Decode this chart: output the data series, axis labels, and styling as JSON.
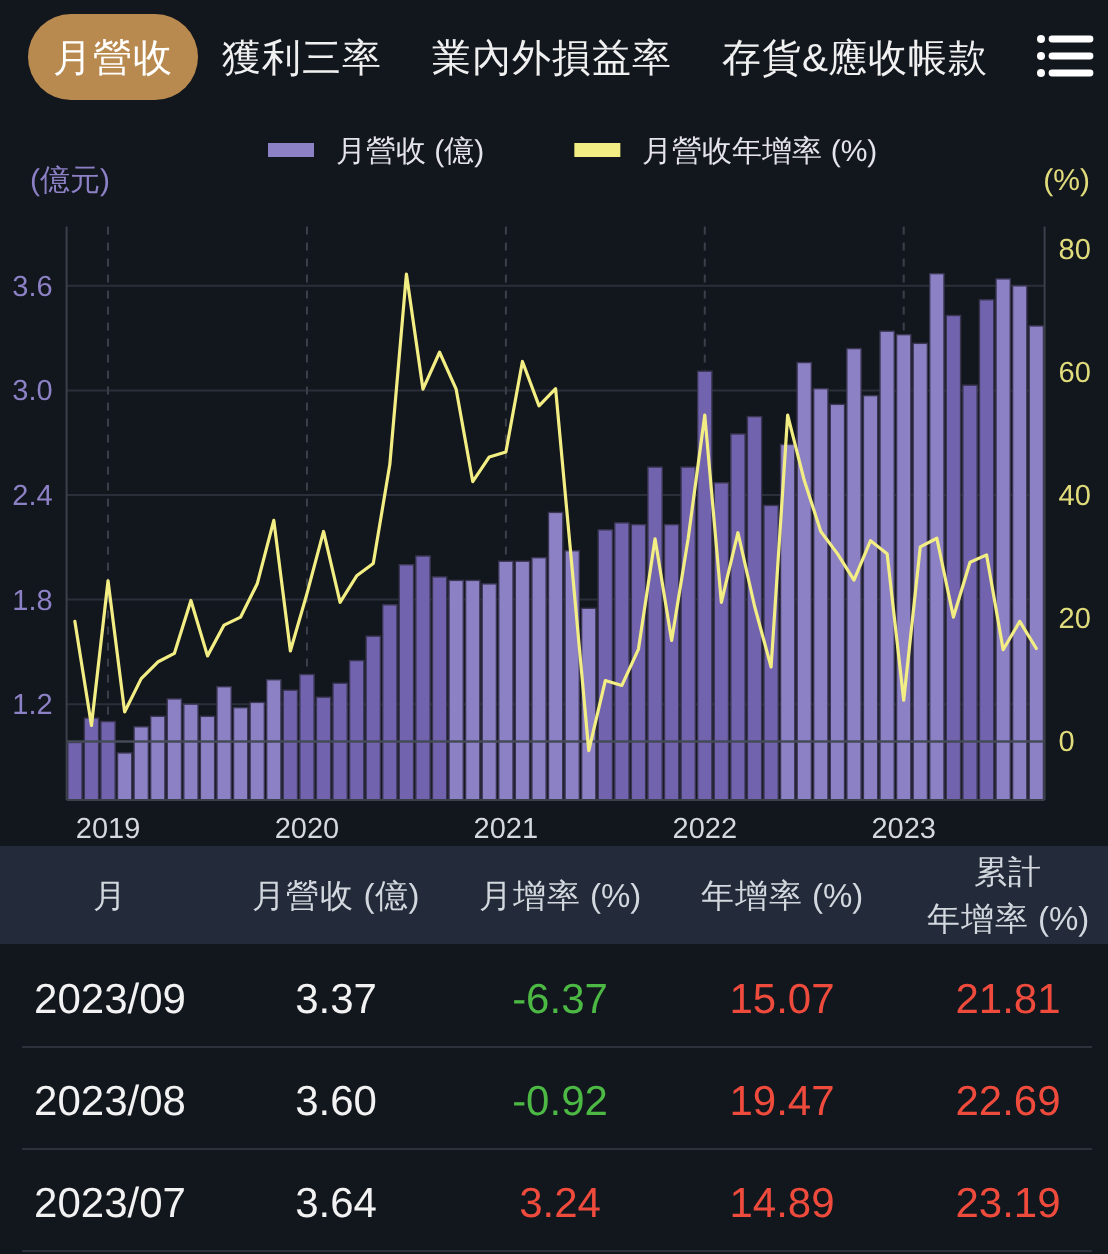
{
  "chart_data": [
    {
      "type": "bar",
      "title": "月營收",
      "annotations": [
        "獲利三率",
        "業內外損益率",
        "存貨&應收帳款"
      ],
      "ylabel": "(億元)",
      "y2label": "(%)",
      "categories": [
        null,
        null,
        "2019",
        null,
        null,
        null,
        null,
        null,
        null,
        null,
        null,
        null,
        null,
        null,
        "2020",
        null,
        null,
        null,
        null,
        null,
        null,
        null,
        null,
        null,
        null,
        null,
        "2021",
        null,
        null,
        null,
        null,
        null,
        null,
        null,
        null,
        null,
        null,
        null,
        "2022",
        null,
        null,
        null,
        null,
        null,
        null,
        null,
        null,
        null,
        null,
        null,
        "2023",
        null,
        null,
        null,
        null,
        null,
        null,
        null,
        null
      ],
      "series": [
        {
          "name": "月營收 (億)",
          "type": "bar",
          "color": "#8d81c6",
          "colors": [
            "#7163ae",
            "#7163ae",
            "#7163ae",
            "#8d81c6",
            "#8d81c6",
            "#8d81c6",
            "#8d81c6",
            "#8d81c6",
            "#8d81c6",
            "#8d81c6",
            "#8d81c6",
            "#8d81c6",
            "#8d81c6",
            "#7163ae",
            "#7163ae",
            "#7163ae",
            "#7163ae",
            "#7163ae",
            "#7163ae",
            "#7163ae",
            "#7163ae",
            "#7163ae",
            "#7163ae",
            "#8d81c6",
            "#8d81c6",
            "#8d81c6",
            "#8d81c6",
            "#8d81c6",
            "#8d81c6",
            "#8d81c6",
            "#8d81c6",
            "#8d81c6",
            "#7163ae",
            "#7163ae",
            "#7163ae",
            "#7163ae",
            "#7163ae",
            "#7163ae",
            "#7163ae",
            "#7163ae",
            "#7163ae",
            "#7163ae",
            "#7163ae",
            "#8d81c6",
            "#8d81c6",
            "#8d81c6",
            "#8d81c6",
            "#8d81c6",
            "#8d81c6",
            "#8d81c6",
            "#8d81c6",
            "#8d81c6",
            "#8d81c6",
            "#7163ae",
            "#7163ae",
            "#7163ae",
            "#8d81c6",
            "#8d81c6",
            "#8d81c6"
          ],
          "values": [
            0.98,
            1.12,
            1.1,
            0.92,
            1.07,
            1.13,
            1.23,
            1.2,
            1.13,
            1.3,
            1.18,
            1.21,
            1.34,
            1.28,
            1.37,
            1.24,
            1.32,
            1.45,
            1.59,
            1.77,
            2.0,
            2.05,
            1.93,
            1.91,
            1.91,
            1.89,
            2.02,
            2.02,
            2.04,
            2.3,
            2.08,
            1.75,
            2.2,
            2.24,
            2.23,
            2.56,
            2.23,
            2.56,
            3.11,
            2.47,
            2.75,
            2.85,
            2.34,
            2.69,
            3.16,
            3.01,
            2.92,
            3.24,
            2.97,
            3.34,
            3.32,
            3.27,
            3.67,
            3.43,
            3.03,
            3.52,
            3.64,
            3.6,
            3.37
          ]
        },
        {
          "name": "月營收年增率 (%)",
          "type": "line",
          "axis": "y2",
          "color": "#f3ee83",
          "values": [
            19.5,
            2.6,
            26.1,
            4.8,
            10.2,
            12.9,
            14.3,
            22.9,
            13.9,
            18.9,
            20.2,
            25.6,
            35.9,
            14.7,
            24.0,
            34.1,
            22.6,
            26.9,
            28.9,
            45,
            75.9,
            57.2,
            63.2,
            57.2,
            42.2,
            46.2,
            47.0,
            61.7,
            54.5,
            57.3,
            28,
            -1.5,
            9.9,
            9.1,
            15.0,
            32.9,
            16.4,
            33,
            53.0,
            22.6,
            33.9,
            22,
            12.1,
            53.0,
            42.4,
            34.1,
            30.5,
            26.2,
            32.6,
            30.5,
            6.7,
            31.6,
            33.0,
            20.2,
            29.1,
            30.3,
            14.9,
            19.5,
            15.1
          ]
        }
      ],
      "ylim": [
        0.65,
        3.94
      ],
      "yticks": [
        1.2,
        1.8,
        2.4,
        {
          "value": 3,
          "label": "3.0"
        },
        3.6
      ],
      "y2lim": [
        -9.5,
        83.6
      ],
      "y2ticks": [
        0,
        20,
        40,
        60,
        80
      ],
      "ref_lines": [
        {
          "axis": "y2",
          "value": 0
        }
      ],
      "grid": true,
      "legend": "top"
    },
    {
      "type": "other",
      "annotations": [
        "月",
        "月營收 (億)",
        "月增率 (%)",
        "年增率 (%)",
        "累計年增率 (%)",
        "2023/09",
        "3.37",
        "-6.37",
        "15.07",
        "21.81",
        "2023/08",
        "3.60",
        "-0.92",
        "19.47",
        "22.69",
        "2023/07",
        "3.64",
        "3.24",
        "14.89",
        "23.19"
      ],
      "colors": [
        "#d3d7de",
        "#d3d7de",
        "#d3d7de",
        "#d3d7de",
        "#d3d7de",
        "#f2f2f2",
        "#f2f2f2",
        "#4cb944",
        "#ef4b3d",
        "#ef4b3d",
        "#f2f2f2",
        "#f2f2f2",
        "#4cb944",
        "#ef4b3d",
        "#ef4b3d",
        "#f2f2f2",
        "#f2f2f2",
        "#ef4b3d",
        "#ef4b3d",
        "#ef4b3d"
      ]
    }
  ]
}
